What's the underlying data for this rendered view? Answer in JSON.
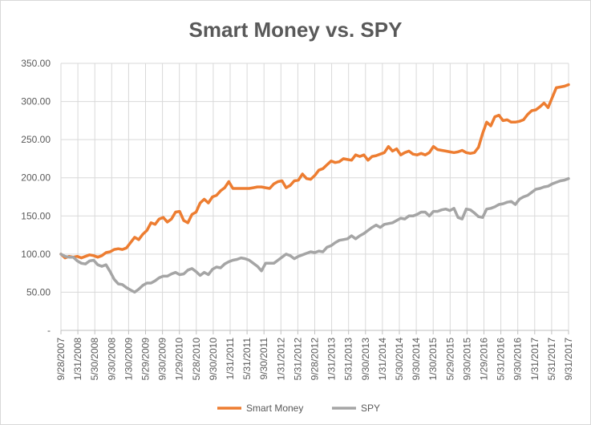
{
  "chart_data": {
    "type": "line",
    "title": "Smart Money vs. SPY",
    "xlabel": "",
    "ylabel": "",
    "ylim": [
      0,
      350
    ],
    "y_ticks": [
      "-",
      "50.00",
      "100.00",
      "150.00",
      "200.00",
      "250.00",
      "300.00",
      "350.00"
    ],
    "x_ticks": [
      "9/28/2007",
      "1/31/2008",
      "5/30/2008",
      "9/30/2008",
      "1/30/2009",
      "5/29/2009",
      "9/30/2009",
      "1/29/2010",
      "5/28/2010",
      "9/30/2010",
      "1/31/2011",
      "5/31/2011",
      "9/30/2011",
      "1/31/2012",
      "5/31/2012",
      "9/28/2012",
      "1/31/2013",
      "5/31/2013",
      "9/30/2013",
      "1/31/2014",
      "5/30/2014",
      "9/30/2014",
      "1/30/2015",
      "5/29/2015",
      "9/30/2015",
      "1/29/2016",
      "5/31/2016",
      "9/30/2016",
      "1/31/2017",
      "5/31/2017",
      "9/31/2017"
    ],
    "grid": true,
    "legend_position": "bottom",
    "series": [
      {
        "name": "Smart Money",
        "color": "#ed7d31",
        "values": [
          100,
          95,
          97,
          96,
          97,
          95,
          97,
          99,
          98,
          96,
          98,
          102,
          103,
          106,
          107,
          106,
          108,
          115,
          122,
          119,
          126,
          131,
          141,
          139,
          146,
          148,
          142,
          146,
          155,
          156,
          144,
          141,
          152,
          155,
          167,
          172,
          167,
          175,
          177,
          183,
          187,
          195,
          186,
          186,
          186,
          186,
          186,
          187,
          188,
          188,
          187,
          186,
          192,
          195,
          196,
          187,
          190,
          196,
          197,
          205,
          199,
          198,
          203,
          210,
          212,
          217,
          222,
          220,
          221,
          225,
          224,
          223,
          230,
          228,
          230,
          223,
          228,
          229,
          231,
          233,
          241,
          235,
          238,
          230,
          233,
          235,
          231,
          230,
          232,
          230,
          233,
          241,
          237,
          236,
          235,
          234,
          233,
          234,
          236,
          233,
          232,
          233,
          240,
          258,
          273,
          268,
          280,
          282,
          275,
          276,
          273,
          273,
          274,
          276,
          283,
          288,
          289,
          293,
          298,
          292,
          305,
          318,
          319,
          320,
          322
        ]
      },
      {
        "name": "SPY",
        "color": "#a5a5a5",
        "values": [
          100,
          97,
          96,
          96,
          91,
          88,
          87,
          91,
          92,
          86,
          84,
          86,
          77,
          67,
          61,
          60,
          56,
          53,
          50,
          54,
          59,
          62,
          62,
          65,
          69,
          71,
          71,
          74,
          76,
          73,
          74,
          79,
          81,
          77,
          72,
          76,
          73,
          80,
          83,
          82,
          87,
          90,
          92,
          93,
          95,
          94,
          92,
          88,
          84,
          78,
          88,
          88,
          88,
          92,
          96,
          100,
          98,
          94,
          97,
          99,
          101,
          103,
          102,
          104,
          103,
          109,
          111,
          115,
          118,
          119,
          120,
          124,
          120,
          124,
          127,
          131,
          135,
          138,
          135,
          139,
          140,
          141,
          144,
          147,
          146,
          150,
          150,
          152,
          155,
          155,
          150,
          156,
          156,
          158,
          159,
          157,
          160,
          148,
          146,
          159,
          158,
          154,
          149,
          148,
          159,
          160,
          162,
          165,
          166,
          168,
          169,
          165,
          172,
          175,
          177,
          181,
          185,
          186,
          188,
          189,
          192,
          194,
          196,
          197,
          199
        ]
      }
    ]
  }
}
